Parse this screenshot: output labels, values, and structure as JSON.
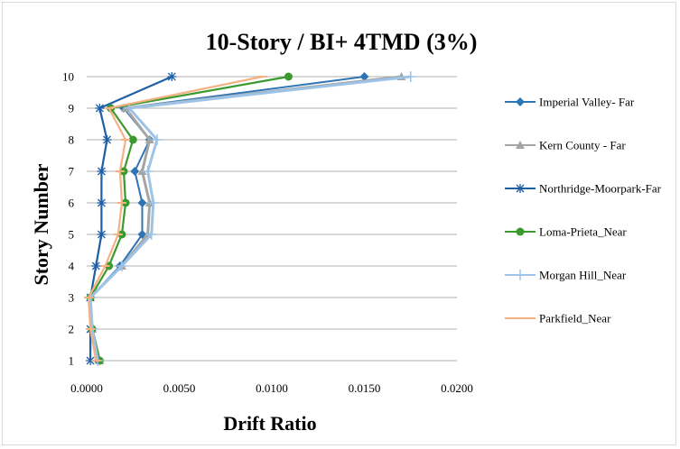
{
  "chart_data": {
    "type": "line",
    "title": "10-Story / BI+ 4TMD  (3%)",
    "xlabel": "Drift Ratio",
    "ylabel": "Story Number",
    "xlim": [
      0,
      0.02
    ],
    "ylim": [
      1,
      10
    ],
    "x_ticks": [
      "0.0000",
      "0.0050",
      "0.0100",
      "0.0150",
      "0.0200"
    ],
    "y_ticks": [
      "1",
      "2",
      "3",
      "4",
      "5",
      "6",
      "7",
      "8",
      "9",
      "10"
    ],
    "grid": "horizontal",
    "legend_position": "right",
    "y": [
      1,
      2,
      3,
      4,
      5,
      6,
      7,
      8,
      9,
      10
    ],
    "series": [
      {
        "name": "Imperial Valley- Far",
        "color": "#2e75b6",
        "marker": "diamond",
        "x": [
          0.0006,
          0.0003,
          0.0002,
          0.0018,
          0.003,
          0.003,
          0.0026,
          0.0034,
          0.002,
          0.015
        ]
      },
      {
        "name": "Kern County - Far",
        "color": "#a5a5a5",
        "marker": "triangle",
        "x": [
          0.0007,
          0.0003,
          0.0002,
          0.0019,
          0.0033,
          0.0034,
          0.003,
          0.0034,
          0.0021,
          0.017
        ]
      },
      {
        "name": "Northridge-Moorpark-Far",
        "color": "#1f5fa6",
        "marker": "asterisk",
        "x": [
          0.0002,
          0.0002,
          0.0002,
          0.0005,
          0.0008,
          0.0008,
          0.0008,
          0.0011,
          0.0007,
          0.0046
        ]
      },
      {
        "name": "Loma-Prieta_Near",
        "color": "#3a9a2d",
        "marker": "circle",
        "x": [
          0.0007,
          0.0003,
          0.0002,
          0.0012,
          0.0019,
          0.0021,
          0.002,
          0.0025,
          0.0013,
          0.0109
        ]
      },
      {
        "name": "Morgan Hill_Near",
        "color": "#9dc3e6",
        "marker": "plus",
        "x": [
          0.0006,
          0.0003,
          0.0002,
          0.0019,
          0.0035,
          0.0036,
          0.0033,
          0.0038,
          0.0023,
          0.0175
        ]
      },
      {
        "name": "Parkfield_Near",
        "color": "#f4b183",
        "marker": "dash",
        "x": [
          0.0005,
          0.0002,
          0.0001,
          0.001,
          0.0017,
          0.0019,
          0.0018,
          0.0021,
          0.0012,
          0.0095
        ]
      }
    ]
  }
}
